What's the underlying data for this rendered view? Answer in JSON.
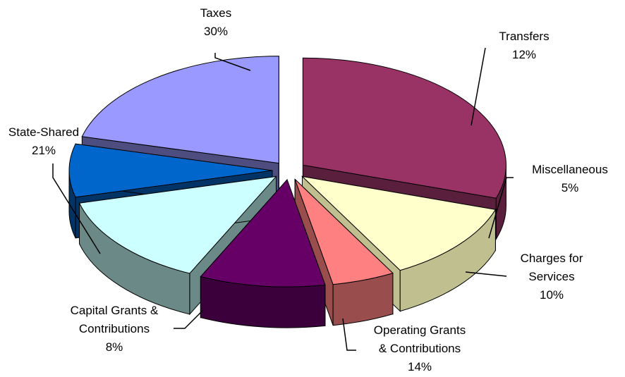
{
  "chart_data": {
    "type": "pie",
    "style": "3d-exploded",
    "slices": [
      {
        "name": "Taxes",
        "value": 30,
        "label": "30%",
        "color": "#993366",
        "side": "#5a1f3c"
      },
      {
        "name": "Transfers",
        "value": 12,
        "label": "12%",
        "color": "#ffffcc",
        "side": "#bfbf8f"
      },
      {
        "name": "Miscellaneous",
        "value": 5,
        "label": "5%",
        "color": "#ff8080",
        "side": "#994d4d"
      },
      {
        "name": "Charges for Services",
        "value": 10,
        "label": "10%",
        "color": "#660066",
        "side": "#3b003b"
      },
      {
        "name": "Operating Grants & Contributions",
        "value": 14,
        "label": "14%",
        "color": "#ccffff",
        "side": "#6b8a87"
      },
      {
        "name": "Capital Grants & Contributions",
        "value": 8,
        "label": "8%",
        "color": "#0066cc",
        "side": "#003366"
      },
      {
        "name": "State-Shared",
        "value": 21,
        "label": "21%",
        "color": "#9999ff",
        "side": "#4d4d80"
      }
    ]
  }
}
